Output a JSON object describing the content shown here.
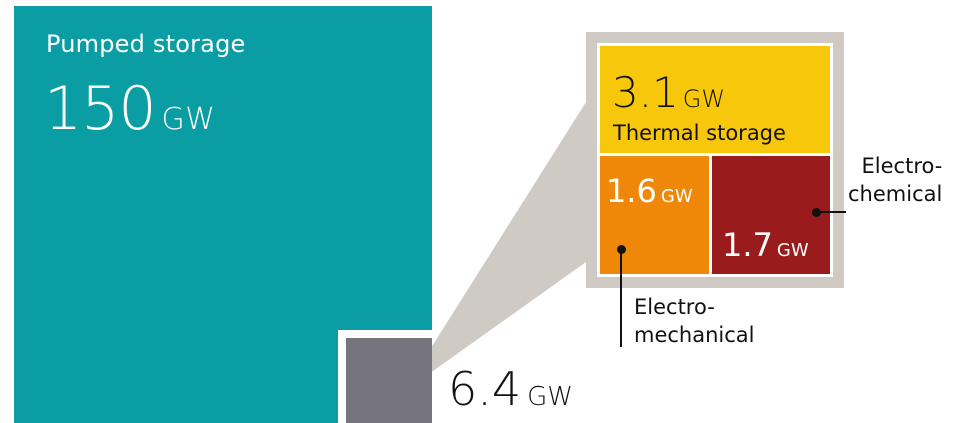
{
  "chart_data": {
    "type": "treemap",
    "units": "GW",
    "items": [
      {
        "name": "Pumped storage",
        "value": 150,
        "value_text": "150",
        "unit": "GW"
      },
      {
        "name": "",
        "value": 6.4,
        "value_text": "6.4",
        "unit": "GW"
      }
    ],
    "breakdown_of_6_4": [
      {
        "name": "Thermal storage",
        "value": 3.1,
        "value_text": "3.1",
        "unit": "GW"
      },
      {
        "name": "Electro-mechanical",
        "value": 1.6,
        "value_text": "1.6",
        "unit": "GW",
        "label_lines": [
          "Electro-",
          "mechanical"
        ]
      },
      {
        "name": "Electro-chemical",
        "value": 1.7,
        "value_text": "1.7",
        "unit": "GW",
        "label_lines": [
          "Electro-",
          "chemical"
        ]
      }
    ]
  },
  "colors": {
    "pumped": "#0a9ea4",
    "other": "#76747d",
    "thermal": "#f7c70c",
    "mechanical": "#ef8708",
    "chemical": "#9a1b1b",
    "callout": "#cfcac4"
  }
}
